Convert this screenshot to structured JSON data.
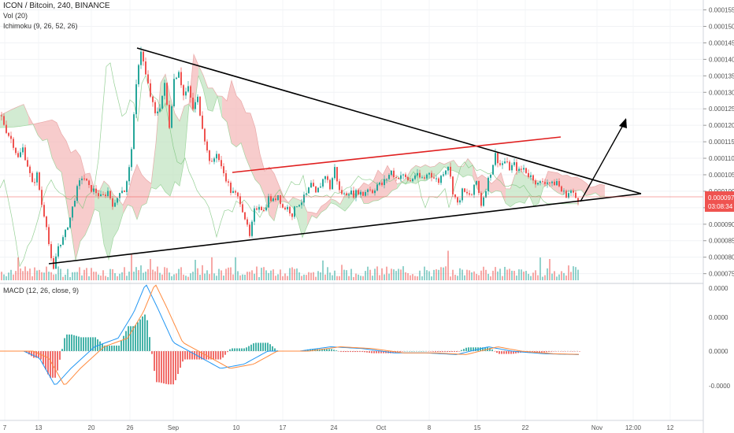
{
  "header": {
    "symbol": "ICON / Bitcoin, 240, BINANCE",
    "volume_indicator": "Vol (20)",
    "ichimoku_indicator": "Ichimoku (9, 26, 52, 26)",
    "macd_indicator": "MACD (12, 26, close, 9)"
  },
  "price_tag": {
    "value": "0.0000972",
    "countdown": "03:08:34",
    "color": "#ef5350"
  },
  "colors": {
    "bull": "#26a69a",
    "bear": "#ef5350",
    "trendline": "#000000",
    "resistance": "#e02020",
    "cloud_bear": "#f4b6b6",
    "cloud_bull": "#bfe3bf",
    "macd_line": "#2196f3",
    "signal_line": "#ff8a3d"
  },
  "chart_data": {
    "type": "candlestick",
    "y_axis_labels": [
      "0.0001550",
      "0.0001500",
      "0.0001450",
      "0.0001400",
      "0.0001350",
      "0.0001300",
      "0.0001250",
      "0.0001200",
      "0.0001150",
      "0.0001100",
      "0.0001050",
      "0.0001000",
      "0.0000950",
      "0.0000900",
      "0.0000850",
      "0.0000800",
      "0.0000750"
    ],
    "ylim": [
      7.3e-05,
      0.000158
    ],
    "x_axis_labels": [
      "7",
      "13",
      "20",
      "26",
      "Sep",
      "10",
      "17",
      "24",
      "Oct",
      "8",
      "15",
      "22",
      "Nov",
      "12:00",
      "12"
    ],
    "macd_axis_labels": [
      "0.0000",
      "0.0000",
      "0.0000",
      "-0.0000"
    ],
    "price_path": [
      [
        0,
        0.000123
      ],
      [
        8,
        0.000118
      ],
      [
        15,
        0.000115
      ],
      [
        22,
        0.00011
      ],
      [
        28,
        0.000113
      ],
      [
        34,
        0.000108
      ],
      [
        40,
        0.000102
      ],
      [
        46,
        0.000105
      ],
      [
        52,
        9.6e-05
      ],
      [
        58,
        9e-05
      ],
      [
        63,
        8e-05
      ],
      [
        67,
        7.6e-05
      ],
      [
        72,
        8.3e-05
      ],
      [
        80,
        8.6e-05
      ],
      [
        88,
        9.2e-05
      ],
      [
        96,
        0.0001
      ],
      [
        104,
        0.000105
      ],
      [
        112,
        0.000101
      ],
      [
        120,
        0.0001
      ],
      [
        128,
        9.8e-05
      ],
      [
        136,
        0.0001
      ],
      [
        144,
        9.5e-05
      ],
      [
        152,
        0.000101
      ],
      [
        158,
        0.0001
      ],
      [
        164,
        0.000108
      ],
      [
        170,
        0.000125
      ],
      [
        174,
        0.000138
      ],
      [
        178,
        0.000143
      ],
      [
        184,
        0.000135
      ],
      [
        190,
        0.000129
      ],
      [
        196,
        0.000123
      ],
      [
        202,
        0.000126
      ],
      [
        208,
        0.000132
      ],
      [
        214,
        0.00012
      ],
      [
        220,
        0.000134
      ],
      [
        226,
        0.000137
      ],
      [
        232,
        0.000129
      ],
      [
        238,
        0.000131
      ],
      [
        244,
        0.000125
      ],
      [
        250,
        0.000128
      ],
      [
        256,
        0.00012
      ],
      [
        262,
        0.000112
      ],
      [
        268,
        0.000108
      ],
      [
        274,
        0.000112
      ],
      [
        280,
        0.000107
      ],
      [
        286,
        0.000104
      ],
      [
        292,
        0.0001
      ],
      [
        298,
        9.9e-05
      ],
      [
        304,
        9.7e-05
      ],
      [
        310,
        9.2e-05
      ],
      [
        316,
        8.6e-05
      ],
      [
        322,
        9.4e-05
      ],
      [
        328,
        9.6e-05
      ],
      [
        334,
        9.4e-05
      ],
      [
        340,
        9.8e-05
      ],
      [
        346,
        9.7e-05
      ],
      [
        352,
        9.9e-05
      ],
      [
        358,
        9.5e-05
      ],
      [
        364,
        9.5e-05
      ],
      [
        370,
        9.3e-05
      ],
      [
        376,
        9.6e-05
      ],
      [
        382,
        9.7e-05
      ],
      [
        388,
        9.9e-05
      ],
      [
        394,
        0.000102
      ],
      [
        400,
        9.9e-05
      ],
      [
        406,
        0.000102
      ],
      [
        412,
        0.000105
      ],
      [
        418,
        0.000101
      ],
      [
        424,
        0.000107
      ],
      [
        430,
        0.0001
      ],
      [
        436,
        9.9e-05
      ],
      [
        442,
        0.0001
      ],
      [
        448,
        9.9e-05
      ],
      [
        454,
        0.0001
      ],
      [
        460,
        9.9e-05
      ],
      [
        466,
        0.000101
      ],
      [
        472,
        0.0001
      ],
      [
        478,
        0.000102
      ],
      [
        484,
        0.000102
      ],
      [
        490,
        0.000104
      ],
      [
        496,
        0.000106
      ],
      [
        502,
        0.000104
      ],
      [
        508,
        0.000105
      ],
      [
        514,
        0.000104
      ],
      [
        520,
        0.000103
      ],
      [
        526,
        0.000105
      ],
      [
        532,
        0.000104
      ],
      [
        538,
        0.000104
      ],
      [
        544,
        0.000106
      ],
      [
        550,
        0.000104
      ],
      [
        556,
        0.000103
      ],
      [
        562,
        0.000106
      ],
      [
        568,
        0.000108
      ],
      [
        574,
        0.0001
      ],
      [
        580,
        9.6e-05
      ],
      [
        586,
        0.0001
      ],
      [
        592,
        9.9e-05
      ],
      [
        598,
        9.9e-05
      ],
      [
        604,
        0.000103
      ],
      [
        610,
        9.6e-05
      ],
      [
        616,
        0.000101
      ],
      [
        622,
        0.000106
      ],
      [
        628,
        0.000111
      ],
      [
        634,
        0.000108
      ],
      [
        640,
        0.000109
      ],
      [
        646,
        0.000107
      ],
      [
        652,
        0.000108
      ],
      [
        658,
        0.000106
      ],
      [
        664,
        0.000107
      ],
      [
        670,
        0.000105
      ],
      [
        676,
        0.000104
      ],
      [
        682,
        0.000102
      ],
      [
        688,
        0.000103
      ],
      [
        694,
        0.000103
      ],
      [
        700,
        0.000102
      ],
      [
        706,
        0.000103
      ],
      [
        712,
        0.0001
      ],
      [
        718,
        9.9e-05
      ],
      [
        724,
        0.0001
      ],
      [
        730,
        9.8e-05
      ],
      [
        735,
        9.72e-05
      ]
    ],
    "macd_path": [
      [
        0,
        0
      ],
      [
        30,
        0
      ],
      [
        50,
        -8
      ],
      [
        70,
        -40
      ],
      [
        90,
        -20
      ],
      [
        120,
        5
      ],
      [
        150,
        15
      ],
      [
        170,
        45
      ],
      [
        185,
        78
      ],
      [
        200,
        50
      ],
      [
        220,
        10
      ],
      [
        250,
        -5
      ],
      [
        280,
        -20
      ],
      [
        310,
        -15
      ],
      [
        340,
        0
      ],
      [
        380,
        0
      ],
      [
        420,
        5
      ],
      [
        460,
        3
      ],
      [
        500,
        -2
      ],
      [
        540,
        -2
      ],
      [
        580,
        -4
      ],
      [
        620,
        5
      ],
      [
        650,
        0
      ],
      [
        690,
        -3
      ],
      [
        735,
        -4
      ]
    ]
  }
}
